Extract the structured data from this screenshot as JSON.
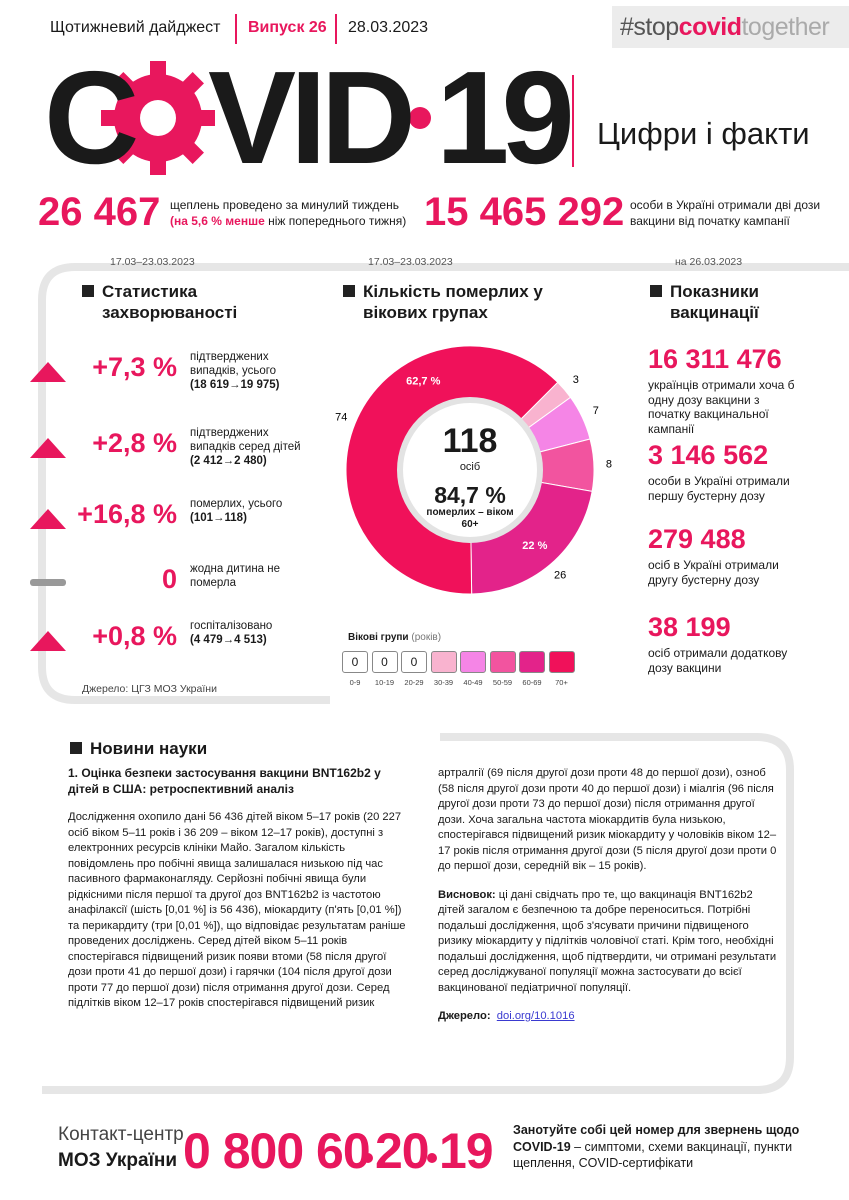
{
  "header": {
    "subtitle": "Щотижневий дайджест",
    "issue": "Випуск 26",
    "date": "28.03.2023",
    "hashtag": [
      "#stop",
      "covid",
      "together"
    ],
    "title_parts": [
      "C",
      "VID",
      "19"
    ],
    "tagline": "Цифри і факти"
  },
  "summary": [
    {
      "value": "26 467",
      "text": "щеплень проведено за минулий тиждень",
      "note_bold": "(на 5,6 % менше",
      "note": " ніж попереднього тижня)"
    },
    {
      "value": "15 465 292",
      "text": "особи в Україні отримали дві дози вакцини від початку кампанії"
    }
  ],
  "stats": {
    "date": "17.03–23.03.2023",
    "title": "Статистика захворюваності",
    "items": [
      {
        "value": "+7,3 %",
        "label": "підтверджених випадків, усього",
        "detail": "(18 619→19 975)",
        "trend": "up"
      },
      {
        "value": "+2,8 %",
        "label": "підтверджених випадків серед дітей",
        "detail": "(2 412→2 480)",
        "trend": "up"
      },
      {
        "value": "+16,8 %",
        "label": "померлих, усього",
        "detail": "(101→118)",
        "trend": "up"
      },
      {
        "value": "0",
        "label": "жодна дитина не померла",
        "trend": "flat"
      },
      {
        "value": "+0,8 %",
        "label": "госпіталізовано",
        "detail": "(4 479→4 513)",
        "trend": "up"
      }
    ],
    "source": "Джерело: ЦГЗ МОЗ України"
  },
  "deaths": {
    "date": "17.03–23.03.2023",
    "title": "Кількість померлих у вікових групах",
    "total": "118",
    "total_label": "осіб",
    "share": "84,7 %",
    "share_label": "померлих – віком 60+",
    "legend_title": "Вікові групи",
    "legend_unit": "(років)",
    "chart": {
      "type": "pie",
      "categories": [
        "0-9",
        "10-19",
        "20-29",
        "30-39",
        "40-49",
        "50-59",
        "60-69",
        "70+"
      ],
      "values": [
        0,
        0,
        0,
        3,
        7,
        8,
        26,
        74
      ],
      "percent_labels": [
        null,
        null,
        null,
        null,
        null,
        null,
        "22 %",
        "62,7 %"
      ],
      "colors": [
        "#ffffff",
        "#ffffff",
        "#ffffff",
        "#f9b3cf",
        "#f585e6",
        "#f2549f",
        "#e3238a",
        "#f0115a"
      ]
    }
  },
  "vaccination": {
    "date": "на 26.03.2023",
    "title": "Показники вакцинації",
    "items": [
      {
        "value": "16 311 476",
        "text": "українців отримали хоча б одну дозу вакцини з початку вакцинальної кампанії"
      },
      {
        "value": "3 146 562",
        "text": "особи в Україні отримали першу бустерну дозу"
      },
      {
        "value": "279 488",
        "text": "осіб в Україні отримали другу бустерну дозу"
      },
      {
        "value": "38 199",
        "text": "осіб отримали додаткову дозу вакцини"
      }
    ]
  },
  "news": {
    "title": "Новини науки",
    "heading": "1. Оцінка безпеки застосування вакцини BNT162b2 у дітей в США: ретроспективний аналіз",
    "body": "Дослідження охопило дані 56 436 дітей віком 5–17 років (20 227 осіб віком 5–11 років і 36 209 – віком 12–17 років), доступні з електронних ресурсів клініки Майо. Загалом кількість повідомлень про побічні явища залишалася низькою під час пасивного фармаконагляду. Серйозні побічні явища були рідкісними після першої та другої доз BNT162b2 із частотою анафілаксії (шість [0,01 %] із 56 436), міокардиту (п'ять [0,01 %]) та перикардиту (три [0,01 %]), що відповідає результатам раніше проведених досліджень. Серед дітей віком 5–11 років спостерігався підвищений ризик появи втоми (58 після другої дози проти 41 до першої дози) і гарячки (104 після другої дози проти 77 до першої дози) після отримання другої дози. Серед підлітків віком 12–17 років спостерігався підвищений ризик артралгії (69 після другої дози проти 48 до першої дози), озноб (58 після другої дози проти 40 до першої дози) і міалгія (96 після другої дози проти 73 до першої дози) після отримання другої дози. Хоча загальна частота міокардитів була низькою, спостерігався підвищений ризик міокардиту у чоловіків віком 12–17 років після отримання другої дози (5 після другої дози проти 0 до першої дози, середній вік – 15 років).",
    "conclusion_label": "Висновок:",
    "conclusion": "ці дані свідчать про те, що вакцинація BNT162b2 дітей загалом є безпечною та добре переноситься. Потрібні подальші дослідження, щоб з'ясувати причини підвищеного ризику міокардиту у підлітків чоловічої статі. Крім того, необхідні подальші дослідження, щоб підтвердити, чи отримані результати серед досліджуваної популяції можна застосувати до всієї вакцинованої педіатричної популяції.",
    "source_label": "Джерело:",
    "source_link": "doi.org/10.1016"
  },
  "footer": {
    "contact_label": "Контакт-центр",
    "contact_org": "МОЗ України",
    "phone_parts": [
      "0 800 60",
      "20",
      "19"
    ],
    "note_bold": "Занотуйте собі цей номер для звернень щодо COVID-19",
    "note": " – симптоми, схеми вакцинації, пункти щеплення, COVID-сертифікати"
  }
}
